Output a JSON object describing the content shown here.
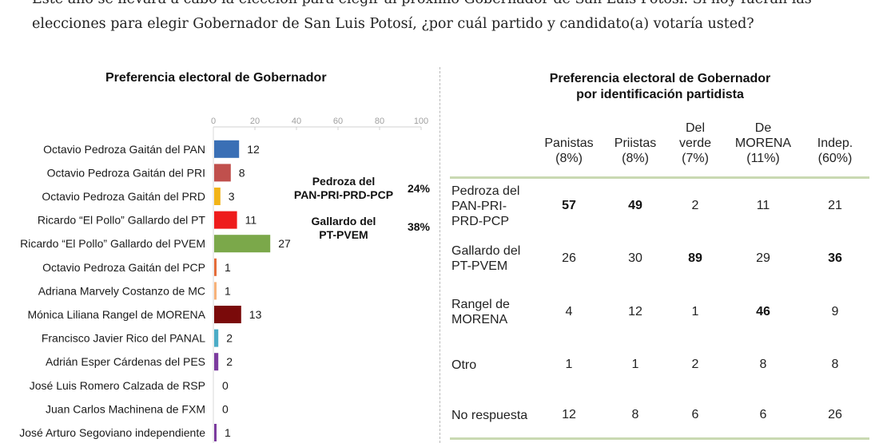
{
  "question": {
    "line1": "Este año se llevará a cabo la elección para elegir al próximo Gobernador de San Luis Potosí. Si hoy fueran las",
    "line2": "elecciones para elegir Gobernador de San Luis Potosí, ¿por cuál partido y candidato(a) votaría usted?"
  },
  "chart_data": [
    {
      "type": "bar",
      "orientation": "horizontal",
      "title": "Preferencia electoral de Gobernador",
      "xlim": [
        0,
        100
      ],
      "xticks": [
        0,
        20,
        40,
        60,
        80,
        100
      ],
      "categories": [
        "Octavio Pedroza Gaitán del PAN",
        "Octavio Pedroza Gaitán del PRI",
        "Octavio Pedroza Gaitán del PRD",
        "Ricardo “El Pollo” Gallardo del PT",
        "Ricardo “El Pollo” Gallardo del PVEM",
        "Octavio Pedroza Gaitán del PCP",
        "Adriana Marvely Costanzo de MC",
        "Mónica Liliana Rangel de MORENA",
        "Francisco Javier Rico del PANAL",
        "Adrián Esper Cárdenas del PES",
        "José Luis Romero Calzada de RSP",
        "Juan Carlos Machinena de FXM",
        "José Arturo Segoviano independiente"
      ],
      "values": [
        12,
        8,
        3,
        11,
        27,
        1,
        1,
        13,
        2,
        2,
        0,
        0,
        1
      ],
      "colors": [
        "#3a6fb5",
        "#c0504d",
        "#f2b418",
        "#ee1c1c",
        "#7ba84a",
        "#e46c3a",
        "#f7b27a",
        "#7a0a0a",
        "#4bacc6",
        "#7b3b9e",
        "#7b3b9e",
        "#7b3b9e",
        "#7b3b9e"
      ],
      "annotations": [
        {
          "label": "Pedroza del PAN-PRI-PRD-PCP",
          "value": "24%"
        },
        {
          "label": "Gallardo del PT-PVEM",
          "value": "38%"
        }
      ]
    },
    {
      "type": "table",
      "title_line1": "Preferencia electoral de Gobernador",
      "title_line2": "por identificación partidista",
      "columns": [
        {
          "lines": [
            "Panistas",
            "(8%)"
          ]
        },
        {
          "lines": [
            "Priistas",
            "(8%)"
          ]
        },
        {
          "lines": [
            "Del",
            "verde",
            "(7%)"
          ]
        },
        {
          "lines": [
            "De",
            "MORENA",
            "(11%)"
          ]
        },
        {
          "lines": [
            "Indep.",
            "(60%)"
          ]
        }
      ],
      "rows": [
        {
          "label_lines": [
            "Pedroza del",
            "PAN-PRI-",
            "PRD-PCP"
          ],
          "values": [
            57,
            49,
            2,
            11,
            21
          ],
          "bold": [
            true,
            true,
            false,
            false,
            false
          ]
        },
        {
          "label_lines": [
            "Gallardo del",
            "PT-PVEM"
          ],
          "values": [
            26,
            30,
            89,
            29,
            36
          ],
          "bold": [
            false,
            false,
            true,
            false,
            true
          ]
        },
        {
          "label_lines": [
            "Rangel de",
            "MORENA"
          ],
          "values": [
            4,
            12,
            1,
            46,
            9
          ],
          "bold": [
            false,
            false,
            false,
            true,
            false
          ]
        },
        {
          "label_lines": [
            "Otro"
          ],
          "values": [
            1,
            1,
            2,
            8,
            8
          ],
          "bold": [
            false,
            false,
            false,
            false,
            false
          ]
        },
        {
          "label_lines": [
            "No respuesta"
          ],
          "values": [
            12,
            8,
            6,
            6,
            26
          ],
          "bold": [
            false,
            false,
            false,
            false,
            false
          ]
        }
      ]
    }
  ]
}
